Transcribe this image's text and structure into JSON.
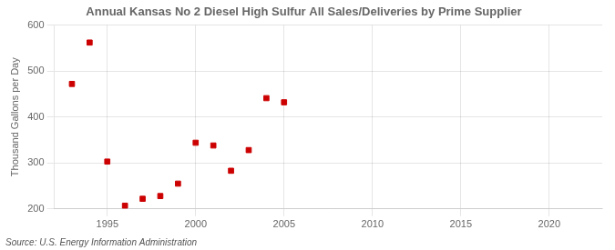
{
  "chart_data": {
    "type": "scatter",
    "title": "Annual Kansas No 2 Diesel High Sulfur All Sales/Deliveries by Prime Supplier",
    "y_label": "Thousand Gallons per Day",
    "annotation": "Source: U.S. Energy Information Administration",
    "x": [
      1993,
      1994,
      1995,
      1996,
      1997,
      1998,
      1999,
      2000,
      2001,
      2002,
      2003,
      2004,
      2005
    ],
    "values": [
      472,
      562,
      303,
      207,
      222,
      228,
      255,
      344,
      338,
      283,
      328,
      441,
      432
    ],
    "color": "#cc0000",
    "marker": "square",
    "xlim": [
      1992,
      2023
    ],
    "ylim": [
      200,
      600
    ],
    "xticks": [
      1995,
      2000,
      2005,
      2010,
      2015,
      2020
    ],
    "yticks": [
      200,
      300,
      400,
      500,
      600
    ],
    "grid": true
  }
}
